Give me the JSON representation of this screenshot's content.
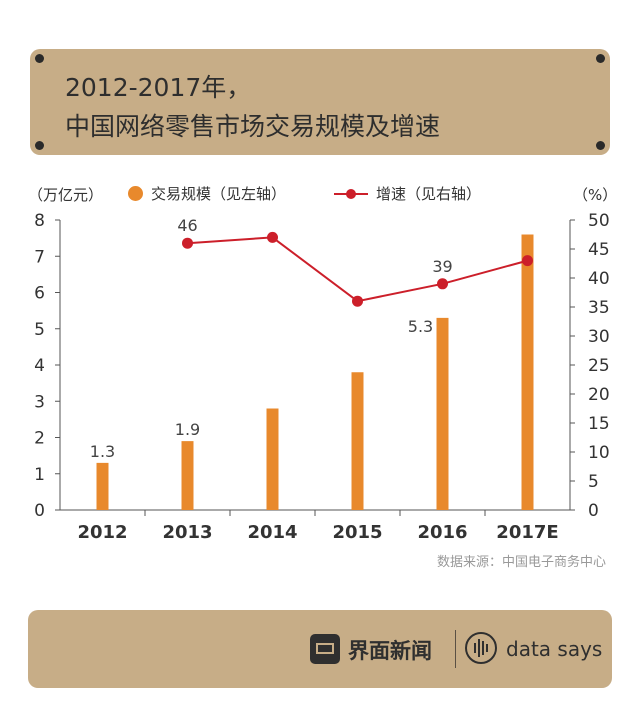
{
  "title": {
    "line1": "2012-2017年，",
    "line2": "中国网络零售市场交易规模及增速"
  },
  "units": {
    "left": "（万亿元）",
    "right": "（%）"
  },
  "legend": {
    "bar": "交易规模（见左轴）",
    "line": "增速（见右轴）"
  },
  "source": "数据来源：中国电子商务中心",
  "footer": {
    "brand": "界面新闻",
    "partner": "data says"
  },
  "colors": {
    "bar": "#e8892c",
    "line": "#cc1f2a",
    "panel": "#c7ad87"
  },
  "chart_data": {
    "type": "bar+line",
    "categories": [
      "2012",
      "2013",
      "2014",
      "2015",
      "2016",
      "2017E"
    ],
    "series": [
      {
        "name": "交易规模（见左轴）",
        "type": "bar",
        "axis": "left",
        "values": [
          1.3,
          1.9,
          2.8,
          3.8,
          5.3,
          7.6
        ]
      },
      {
        "name": "增速（见右轴）",
        "type": "line",
        "axis": "right",
        "values": [
          null,
          46,
          47,
          36,
          39,
          43
        ]
      }
    ],
    "bar_labels": [
      "1.3",
      "1.9",
      "",
      "",
      "5.3",
      ""
    ],
    "line_labels": [
      "",
      "46",
      "",
      "",
      "39",
      ""
    ],
    "ylim_left": [
      0,
      8
    ],
    "yticks_left": [
      "0",
      "1",
      "2",
      "3",
      "4",
      "5",
      "6",
      "7",
      "8"
    ],
    "ylim_right": [
      0,
      50
    ],
    "yticks_right": [
      "0",
      "5",
      "10",
      "15",
      "20",
      "25",
      "30",
      "35",
      "40",
      "45",
      "50"
    ],
    "grid": false
  }
}
